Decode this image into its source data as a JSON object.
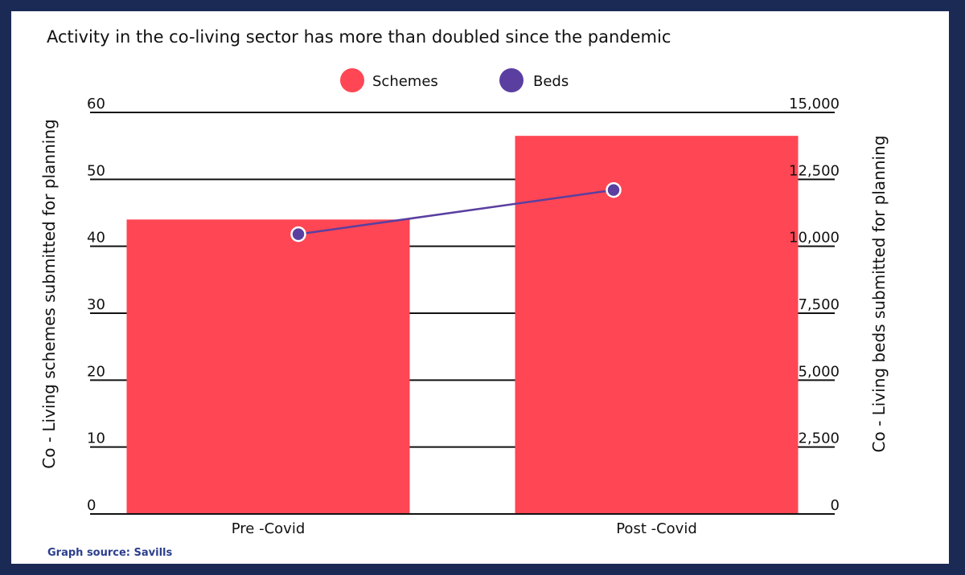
{
  "chart_data": {
    "type": "bar",
    "title": "Activity in the co-living sector has more than doubled since the pandemic",
    "categories": [
      "Pre -Covid",
      "Post -Covid"
    ],
    "series": [
      {
        "name": "Schemes",
        "type": "bar",
        "axis": "left",
        "color": "#ff4654",
        "values": [
          44,
          56.5
        ]
      },
      {
        "name": "Beds",
        "type": "line",
        "axis": "right",
        "color": "#5a3fa0",
        "values": [
          10450,
          12100
        ]
      }
    ],
    "ylabel": "Co - Living schemes submitted for planning",
    "ylabel_right": "Co - Living beds submitted for planning",
    "ylim": [
      0,
      60
    ],
    "ylim_right": [
      0,
      15000
    ],
    "yticks": [
      "0",
      "10",
      "20",
      "30",
      "40",
      "50",
      "60"
    ],
    "yticks_right": [
      "0",
      "2,500",
      "5,000",
      "7,500",
      "10,000",
      "12,500",
      "15,000"
    ],
    "legend_position": "top-center",
    "grid": true
  },
  "source": "Graph source: Savills"
}
